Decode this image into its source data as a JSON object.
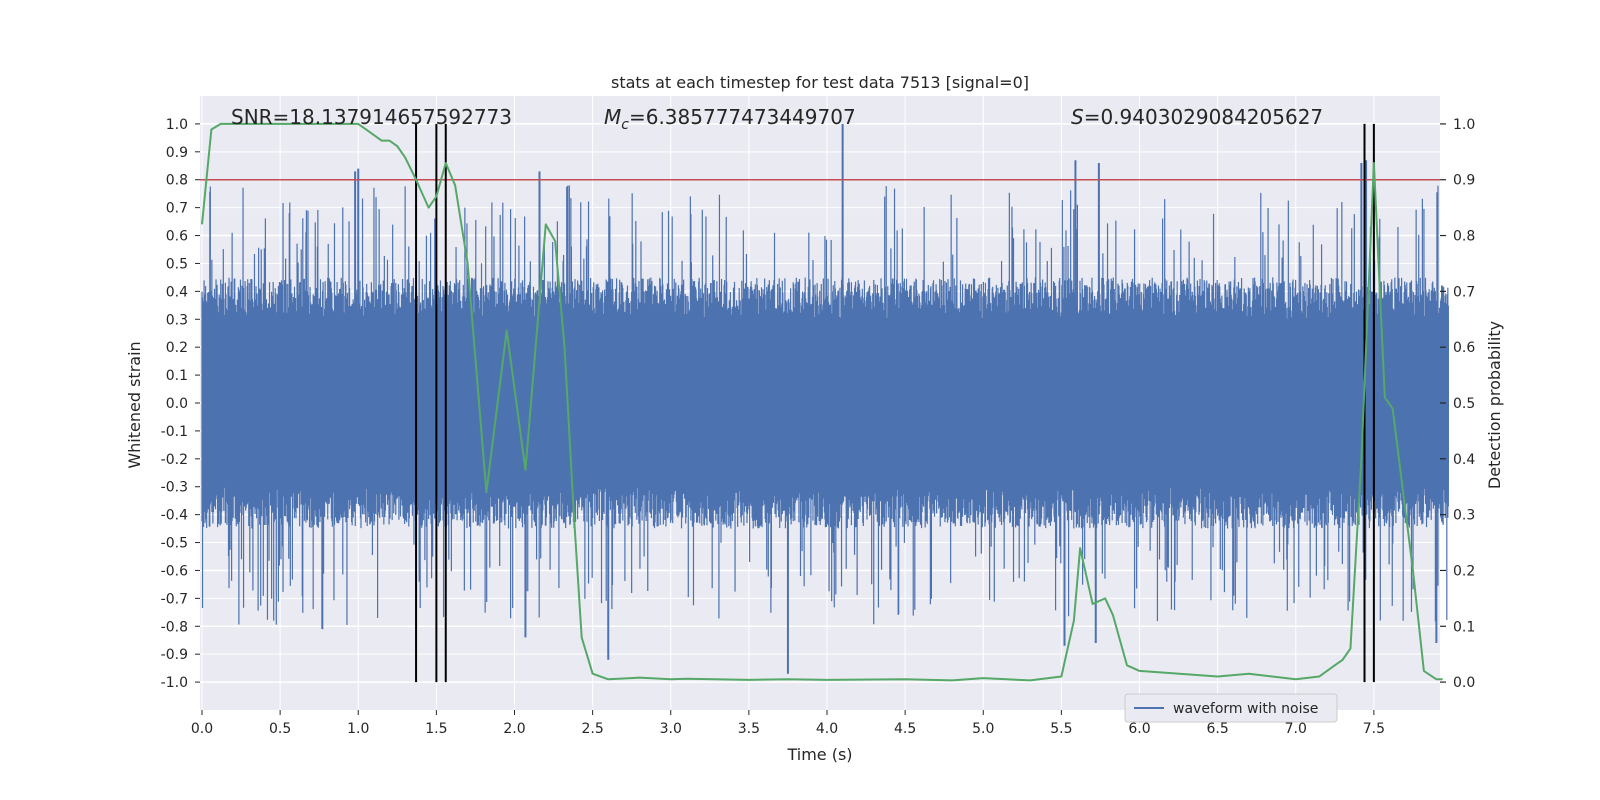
{
  "chart_data": {
    "type": "line",
    "title": "stats at each timestep for test data 7513 [signal=0]",
    "xlabel": "Time (s)",
    "ylabel_left": "Whitened strain",
    "ylabel_right": "Detection probability",
    "xlim": [
      0.0,
      8.0
    ],
    "ylim_left": [
      -1.1,
      1.1
    ],
    "ylim_right": [
      -0.05,
      1.05
    ],
    "xticks": [
      "0.0",
      "0.5",
      "1.0",
      "1.5",
      "2.0",
      "2.5",
      "3.0",
      "3.5",
      "4.0",
      "4.5",
      "5.0",
      "5.5",
      "6.0",
      "6.5",
      "7.0",
      "7.5"
    ],
    "yticks_left": [
      "-1.0",
      "-0.9",
      "-0.8",
      "-0.7",
      "-0.6",
      "-0.5",
      "-0.4",
      "-0.3",
      "-0.2",
      "-0.1",
      "0.0",
      "0.1",
      "0.2",
      "0.3",
      "0.4",
      "0.5",
      "0.6",
      "0.7",
      "0.8",
      "0.9",
      "1.0"
    ],
    "yticks_right": [
      "0.0",
      "0.1",
      "0.2",
      "0.3",
      "0.4",
      "0.5",
      "0.6",
      "0.7",
      "0.8",
      "0.9",
      "1.0"
    ],
    "annotations": {
      "snr": "SNR=18.137914657592773",
      "mc_symbol": "M",
      "mc_sub": "c",
      "mc_value": "=6.385777473449707",
      "s_symbol": "S",
      "s_value": "=0.9403029084205627"
    },
    "legend": {
      "label": "waveform with noise",
      "position": "lower-right"
    },
    "threshold": {
      "value": 0.9,
      "axis": "right",
      "color": "#c44e52"
    },
    "event_lines": [
      1.37,
      1.5,
      1.56,
      7.44,
      7.5
    ],
    "series": [
      {
        "name": "waveform with noise",
        "axis": "left",
        "color": "#4c72b0",
        "style": "dense-noise",
        "peak_spikes": [
          {
            "t": 4.1,
            "v": 1.0
          },
          {
            "t": 0.98,
            "v": 0.83
          },
          {
            "t": 2.16,
            "v": 0.83
          },
          {
            "t": 1.0,
            "v": 0.84
          },
          {
            "t": 5.59,
            "v": 0.87
          },
          {
            "t": 5.74,
            "v": 0.86
          },
          {
            "t": 7.42,
            "v": 0.86
          },
          {
            "t": 7.45,
            "v": 0.87
          },
          {
            "t": 3.75,
            "v": -0.97
          },
          {
            "t": 2.6,
            "v": -0.92
          },
          {
            "t": 7.9,
            "v": -0.86
          },
          {
            "t": 2.07,
            "v": -0.84
          },
          {
            "t": 0.77,
            "v": -0.81
          },
          {
            "t": 5.52,
            "v": -0.87
          },
          {
            "t": 5.72,
            "v": -0.86
          }
        ]
      },
      {
        "name": "detection probability",
        "axis": "right",
        "color": "#55a868",
        "x": [
          0.0,
          0.06,
          0.12,
          0.25,
          0.5,
          0.75,
          1.0,
          1.05,
          1.1,
          1.15,
          1.2,
          1.25,
          1.3,
          1.37,
          1.45,
          1.5,
          1.56,
          1.62,
          1.7,
          1.82,
          1.95,
          2.07,
          2.2,
          2.26,
          2.32,
          2.38,
          2.43,
          2.5,
          2.6,
          2.8,
          3.0,
          3.1,
          3.5,
          3.75,
          4.0,
          4.5,
          4.8,
          5.0,
          5.3,
          5.5,
          5.58,
          5.62,
          5.7,
          5.78,
          5.83,
          5.92,
          6.0,
          6.5,
          6.7,
          7.0,
          7.15,
          7.2,
          7.25,
          7.3,
          7.35,
          7.42,
          7.5,
          7.57,
          7.62,
          7.75,
          7.82,
          7.9,
          7.94
        ],
        "y": [
          0.82,
          0.99,
          1.0,
          1.0,
          1.0,
          1.0,
          1.0,
          0.99,
          0.98,
          0.97,
          0.97,
          0.96,
          0.94,
          0.9,
          0.85,
          0.87,
          0.93,
          0.89,
          0.75,
          0.34,
          0.63,
          0.38,
          0.82,
          0.79,
          0.6,
          0.3,
          0.08,
          0.015,
          0.005,
          0.008,
          0.005,
          0.006,
          0.004,
          0.005,
          0.004,
          0.005,
          0.003,
          0.007,
          0.003,
          0.01,
          0.11,
          0.24,
          0.14,
          0.15,
          0.12,
          0.03,
          0.02,
          0.01,
          0.015,
          0.005,
          0.01,
          0.02,
          0.03,
          0.04,
          0.06,
          0.4,
          0.93,
          0.51,
          0.49,
          0.2,
          0.02,
          0.005,
          0.005
        ]
      }
    ]
  }
}
